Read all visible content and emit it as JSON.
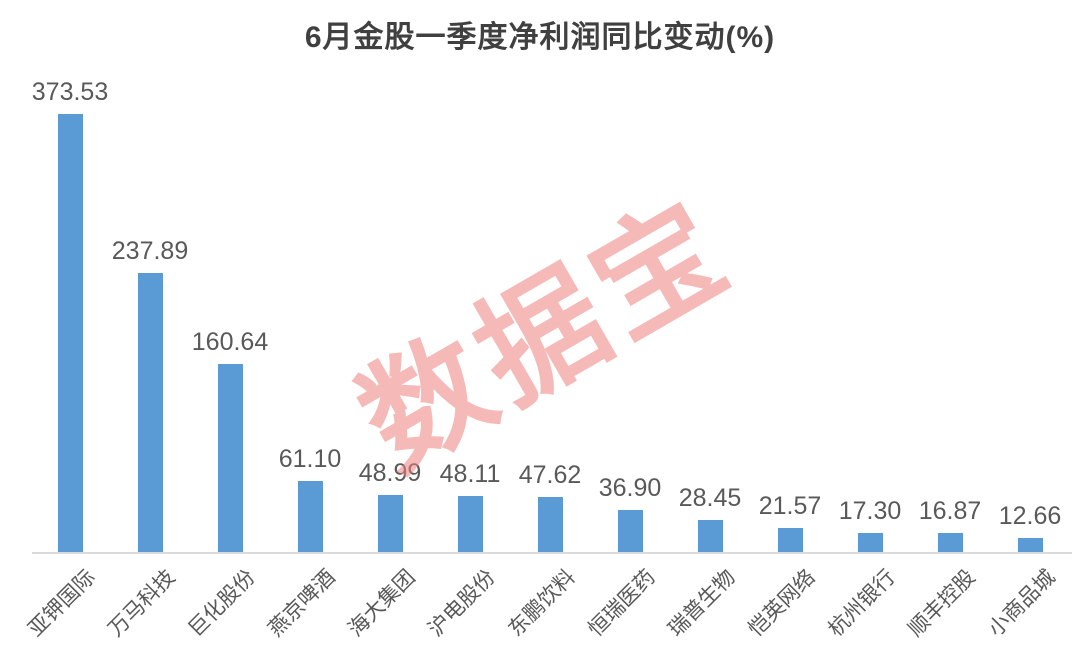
{
  "title": "6月金股一季度净利润同比变动(%)",
  "watermark": "数据宝",
  "colors": {
    "bar": "#5B9BD5",
    "title_text": "#404040",
    "value_label": "#595959",
    "category_label": "#595959",
    "axis_line": "#D9D9D9",
    "watermark": "#EE827D",
    "background": "#FFFFFF"
  },
  "chart_data": {
    "type": "bar",
    "title": "6月金股一季度净利润同比变动(%)",
    "categories": [
      "亚钾国际",
      "万马科技",
      "巨化股份",
      "燕京啤酒",
      "海大集团",
      "沪电股份",
      "东鹏饮料",
      "恒瑞医药",
      "瑞普生物",
      "恺英网络",
      "杭州银行",
      "顺丰控股",
      "小商品城"
    ],
    "values": [
      373.53,
      237.89,
      160.64,
      61.1,
      48.99,
      48.11,
      47.62,
      36.9,
      28.45,
      21.57,
      17.3,
      16.87,
      12.66
    ],
    "value_labels": [
      "373.53",
      "237.89",
      "160.64",
      "61.10",
      "48.99",
      "48.11",
      "47.62",
      "36.90",
      "28.45",
      "21.57",
      "17.30",
      "16.87",
      "12.66"
    ],
    "xlabel": "",
    "ylabel": "",
    "ylim": [
      0,
      400
    ],
    "grid": false,
    "legend": false,
    "x_tick_rotation": 45,
    "data_labels_position": "above-bars"
  }
}
